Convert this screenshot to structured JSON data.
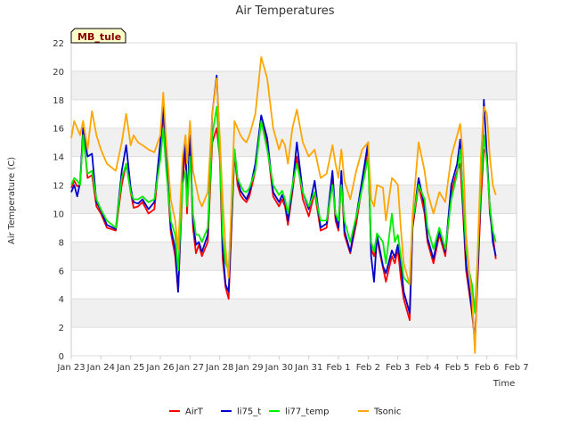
{
  "chart_data": {
    "type": "line",
    "title": "Air Temperatures",
    "xlabel": "Time",
    "ylabel": "Air Temperature (C)",
    "station_tag": "MB_tule",
    "ylim": [
      0,
      22
    ],
    "yticks": [
      0,
      2,
      4,
      6,
      8,
      10,
      12,
      14,
      16,
      18,
      20,
      22
    ],
    "xlim": [
      0,
      15
    ],
    "xtick_labels": [
      "Jan 23",
      "Jan 24",
      "Jan 25",
      "Jan 26",
      "Jan 27",
      "Jan 28",
      "Jan 29",
      "Jan 30",
      "Jan 31",
      "Feb 1",
      "Feb 2",
      "Feb 3",
      "Feb 4",
      "Feb 5",
      "Feb 6",
      "Feb 7"
    ],
    "grid": true,
    "legend_position": "bottom-center",
    "series": [
      {
        "name": "AirT",
        "color": "#ff0000",
        "x": [
          0.0,
          0.1,
          0.2,
          0.3,
          0.4,
          0.55,
          0.7,
          0.85,
          1.0,
          1.2,
          1.5,
          1.7,
          1.85,
          2.0,
          2.1,
          2.25,
          2.4,
          2.6,
          2.8,
          3.0,
          3.1,
          3.2,
          3.35,
          3.5,
          3.6,
          3.75,
          3.85,
          3.9,
          4.0,
          4.1,
          4.2,
          4.3,
          4.4,
          4.6,
          4.75,
          4.9,
          5.0,
          5.1,
          5.2,
          5.3,
          5.5,
          5.6,
          5.7,
          5.8,
          5.9,
          6.0,
          6.2,
          6.4,
          6.6,
          6.8,
          7.0,
          7.1,
          7.2,
          7.3,
          7.45,
          7.6,
          7.8,
          8.0,
          8.2,
          8.4,
          8.6,
          8.8,
          8.9,
          9.0,
          9.1,
          9.2,
          9.4,
          9.6,
          9.8,
          10.0,
          10.1,
          10.2,
          10.3,
          10.5,
          10.6,
          10.8,
          10.9,
          11.0,
          11.1,
          11.2,
          11.4,
          11.5,
          11.7,
          11.9,
          12.0,
          12.2,
          12.4,
          12.6,
          12.8,
          13.0,
          13.1,
          13.2,
          13.3,
          13.4,
          13.5,
          13.6,
          13.7,
          13.8,
          13.9,
          14.0,
          14.1,
          14.2,
          14.3
        ],
        "y": [
          11.8,
          12.3,
          11.9,
          12.0,
          15.8,
          12.5,
          12.7,
          10.5,
          10.0,
          9.0,
          8.8,
          12.0,
          13.5,
          11.5,
          10.4,
          10.5,
          10.8,
          10.0,
          10.3,
          14.5,
          17.0,
          13.5,
          8.7,
          7.0,
          4.5,
          12.0,
          14.8,
          10.0,
          14.8,
          9.0,
          7.2,
          7.8,
          7.0,
          8.0,
          15.0,
          16.0,
          14.0,
          6.8,
          4.8,
          4.0,
          14.2,
          12.0,
          11.3,
          11.0,
          10.8,
          11.2,
          13.0,
          16.8,
          14.8,
          11.2,
          10.5,
          11.0,
          10.5,
          9.2,
          11.5,
          14.0,
          11.0,
          9.8,
          11.5,
          8.8,
          9.0,
          12.5,
          9.5,
          8.8,
          12.5,
          8.5,
          7.2,
          9.3,
          12.0,
          14.5,
          7.5,
          7.0,
          8.2,
          6.2,
          5.2,
          7.0,
          6.5,
          7.5,
          5.5,
          4.0,
          2.5,
          9.0,
          12.0,
          10.0,
          8.0,
          6.5,
          8.5,
          7.0,
          11.5,
          13.0,
          13.5,
          10.0,
          6.0,
          4.5,
          3.0,
          1.0,
          6.0,
          11.0,
          14.5,
          14.2,
          10.0,
          8.5,
          6.8
        ]
      },
      {
        "name": "li75_t",
        "color": "#0000cc",
        "x": [
          0.0,
          0.1,
          0.2,
          0.3,
          0.4,
          0.55,
          0.7,
          0.85,
          1.0,
          1.2,
          1.5,
          1.7,
          1.85,
          2.0,
          2.1,
          2.25,
          2.4,
          2.6,
          2.8,
          3.0,
          3.1,
          3.2,
          3.35,
          3.5,
          3.6,
          3.75,
          3.85,
          3.9,
          4.0,
          4.1,
          4.2,
          4.3,
          4.4,
          4.6,
          4.75,
          4.9,
          5.0,
          5.1,
          5.2,
          5.3,
          5.5,
          5.6,
          5.7,
          5.8,
          5.9,
          6.0,
          6.2,
          6.4,
          6.6,
          6.8,
          7.0,
          7.1,
          7.2,
          7.3,
          7.45,
          7.6,
          7.8,
          8.0,
          8.2,
          8.4,
          8.6,
          8.8,
          8.9,
          9.0,
          9.1,
          9.2,
          9.4,
          9.6,
          9.8,
          10.0,
          10.1,
          10.2,
          10.3,
          10.5,
          10.6,
          10.8,
          10.9,
          11.0,
          11.1,
          11.2,
          11.4,
          11.5,
          11.7,
          11.9,
          12.0,
          12.2,
          12.4,
          12.6,
          12.8,
          13.0,
          13.1,
          13.2,
          13.3,
          13.4,
          13.5,
          13.6,
          13.7,
          13.8,
          13.9,
          14.0,
          14.1,
          14.2,
          14.3
        ],
        "y": [
          11.5,
          12.0,
          11.2,
          12.2,
          16.0,
          14.0,
          14.2,
          10.8,
          10.2,
          9.2,
          8.9,
          13.0,
          14.8,
          11.8,
          10.8,
          10.7,
          11.0,
          10.3,
          10.8,
          15.0,
          17.5,
          14.5,
          9.0,
          7.5,
          4.5,
          12.8,
          15.3,
          10.5,
          15.5,
          9.5,
          7.8,
          8.0,
          7.3,
          8.5,
          17.0,
          19.7,
          15.0,
          7.5,
          5.0,
          4.5,
          14.5,
          12.5,
          11.6,
          11.3,
          11.0,
          11.5,
          13.5,
          16.9,
          15.3,
          11.5,
          10.8,
          11.3,
          10.8,
          9.5,
          11.8,
          15.0,
          11.5,
          10.3,
          12.3,
          9.0,
          9.3,
          13.0,
          9.8,
          9.0,
          13.0,
          8.8,
          7.3,
          9.8,
          12.4,
          15.0,
          7.0,
          5.2,
          8.5,
          6.3,
          5.8,
          7.4,
          6.9,
          7.8,
          6.5,
          4.5,
          3.0,
          9.2,
          12.5,
          10.5,
          8.3,
          6.8,
          8.8,
          7.3,
          12.0,
          13.5,
          15.2,
          10.5,
          6.5,
          4.8,
          3.2,
          1.0,
          6.5,
          12.0,
          18.0,
          14.0,
          10.5,
          8.0,
          7.0
        ]
      },
      {
        "name": "li77_temp",
        "color": "#00ee00",
        "x": [
          0.0,
          0.1,
          0.2,
          0.3,
          0.4,
          0.55,
          0.7,
          0.85,
          1.0,
          1.2,
          1.5,
          1.7,
          1.85,
          2.0,
          2.1,
          2.25,
          2.4,
          2.6,
          2.8,
          3.0,
          3.1,
          3.2,
          3.35,
          3.5,
          3.6,
          3.75,
          3.85,
          3.9,
          4.0,
          4.1,
          4.2,
          4.3,
          4.4,
          4.6,
          4.75,
          4.9,
          5.0,
          5.1,
          5.2,
          5.3,
          5.5,
          5.6,
          5.7,
          5.8,
          5.9,
          6.0,
          6.2,
          6.4,
          6.6,
          6.8,
          7.0,
          7.1,
          7.2,
          7.3,
          7.45,
          7.6,
          7.8,
          8.0,
          8.2,
          8.4,
          8.6,
          8.8,
          8.9,
          9.0,
          9.1,
          9.2,
          9.4,
          9.6,
          9.8,
          10.0,
          10.1,
          10.2,
          10.3,
          10.5,
          10.6,
          10.8,
          10.9,
          11.0,
          11.1,
          11.2,
          11.4,
          11.5,
          11.7,
          11.9,
          12.0,
          12.2,
          12.4,
          12.6,
          12.8,
          13.0,
          13.1,
          13.2,
          13.3,
          13.4,
          13.5,
          13.6,
          13.7,
          13.8,
          13.9,
          14.0,
          14.1,
          14.2,
          14.3
        ],
        "y": [
          12.0,
          12.5,
          12.3,
          12.0,
          15.5,
          12.8,
          13.0,
          11.0,
          10.3,
          9.5,
          9.0,
          12.5,
          13.5,
          11.5,
          11.0,
          11.0,
          11.2,
          10.8,
          11.0,
          13.8,
          16.0,
          13.0,
          9.5,
          8.5,
          6.0,
          12.0,
          13.0,
          10.5,
          14.0,
          10.0,
          8.5,
          8.5,
          8.0,
          9.0,
          15.5,
          17.5,
          14.0,
          8.5,
          6.5,
          6.0,
          14.5,
          12.5,
          12.0,
          11.6,
          11.5,
          11.8,
          13.0,
          16.5,
          14.5,
          12.0,
          11.3,
          11.6,
          11.0,
          10.0,
          12.0,
          13.5,
          11.5,
          10.5,
          11.5,
          9.5,
          9.5,
          12.0,
          10.0,
          9.5,
          12.0,
          9.5,
          8.0,
          9.8,
          11.8,
          14.0,
          8.0,
          7.3,
          8.6,
          8.0,
          6.5,
          10.0,
          8.0,
          8.5,
          7.0,
          5.5,
          5.0,
          9.5,
          12.0,
          11.0,
          9.0,
          7.5,
          9.0,
          7.5,
          11.0,
          12.8,
          14.5,
          11.0,
          7.5,
          6.0,
          5.0,
          3.0,
          7.5,
          12.0,
          15.5,
          13.5,
          10.5,
          8.8,
          8.0
        ]
      },
      {
        "name": "Tsonic",
        "color": "#ffa500",
        "x": [
          0.0,
          0.1,
          0.2,
          0.3,
          0.4,
          0.55,
          0.7,
          0.85,
          1.0,
          1.2,
          1.5,
          1.7,
          1.85,
          2.0,
          2.1,
          2.25,
          2.4,
          2.6,
          2.8,
          3.0,
          3.1,
          3.2,
          3.35,
          3.5,
          3.6,
          3.75,
          3.85,
          3.9,
          4.0,
          4.1,
          4.2,
          4.3,
          4.4,
          4.6,
          4.75,
          4.9,
          5.0,
          5.1,
          5.2,
          5.3,
          5.5,
          5.6,
          5.7,
          5.8,
          5.9,
          6.0,
          6.2,
          6.4,
          6.6,
          6.8,
          7.0,
          7.1,
          7.2,
          7.3,
          7.45,
          7.6,
          7.8,
          8.0,
          8.2,
          8.4,
          8.6,
          8.8,
          8.9,
          9.0,
          9.1,
          9.2,
          9.4,
          9.6,
          9.8,
          10.0,
          10.1,
          10.2,
          10.3,
          10.5,
          10.6,
          10.8,
          10.9,
          11.0,
          11.1,
          11.2,
          11.4,
          11.5,
          11.7,
          11.9,
          12.0,
          12.2,
          12.4,
          12.6,
          12.8,
          13.0,
          13.1,
          13.2,
          13.3,
          13.4,
          13.5,
          13.6,
          13.7,
          13.8,
          13.9,
          14.0,
          14.1,
          14.2,
          14.3
        ],
        "y": [
          15.3,
          16.5,
          16.0,
          15.5,
          16.5,
          14.5,
          17.2,
          15.5,
          14.5,
          13.5,
          13.0,
          15.0,
          17.0,
          14.8,
          15.5,
          15.0,
          14.8,
          14.5,
          14.3,
          15.5,
          18.5,
          15.0,
          11.0,
          9.5,
          7.5,
          14.0,
          15.5,
          13.5,
          16.5,
          13.0,
          12.0,
          11.0,
          10.5,
          11.5,
          17.0,
          19.5,
          15.5,
          11.0,
          7.5,
          5.5,
          16.5,
          16.0,
          15.5,
          15.2,
          15.0,
          15.5,
          17.0,
          21.0,
          19.5,
          16.0,
          14.5,
          15.2,
          14.8,
          13.5,
          16.0,
          17.3,
          15.0,
          14.0,
          14.5,
          12.5,
          12.8,
          14.8,
          13.5,
          12.5,
          14.5,
          12.3,
          11.0,
          13.0,
          14.5,
          15.0,
          11.0,
          10.5,
          12.0,
          11.8,
          9.5,
          12.5,
          12.3,
          12.0,
          9.0,
          6.5,
          5.0,
          10.0,
          15.0,
          13.0,
          11.5,
          10.0,
          11.5,
          10.8,
          14.0,
          15.5,
          16.3,
          14.0,
          8.5,
          6.0,
          4.0,
          0.2,
          8.0,
          14.0,
          17.5,
          17.0,
          14.0,
          12.0,
          11.3
        ]
      }
    ]
  }
}
